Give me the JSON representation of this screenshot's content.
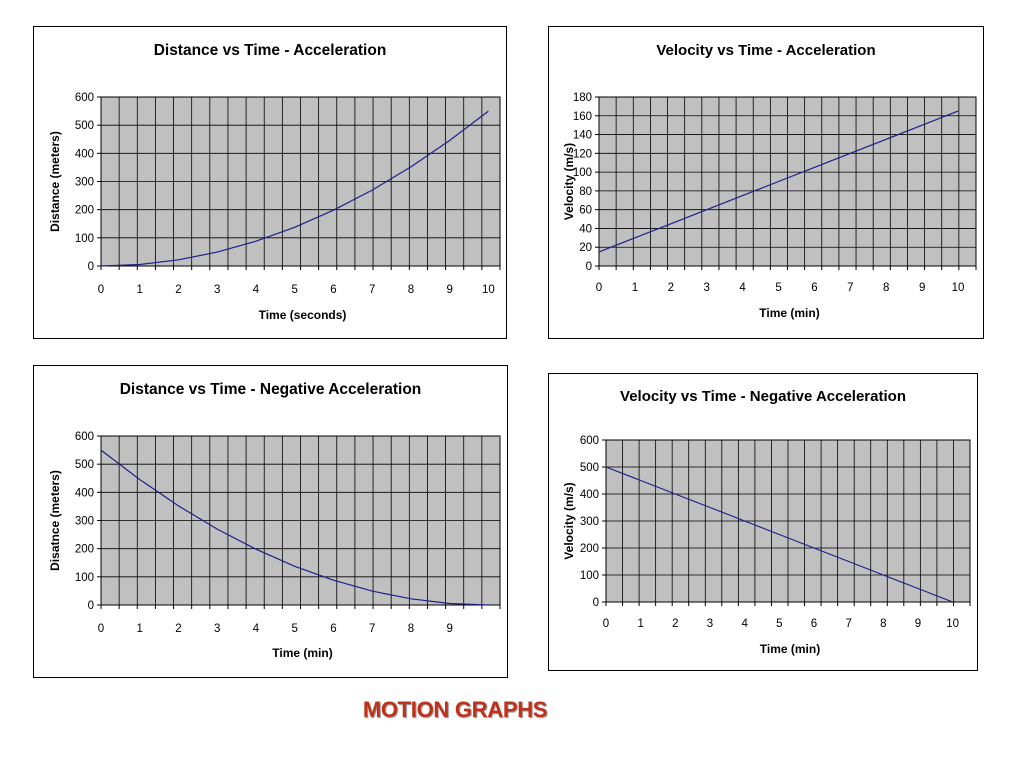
{
  "footer": {
    "title": "MOTION GRAPHS"
  },
  "colors": {
    "plot_bg": "#c0c0c0",
    "line": "#1f1f8c",
    "grid": "#000000",
    "footer_text": "#c0311a"
  },
  "chart_data": [
    {
      "type": "line",
      "title": "Distance vs Time - Acceleration",
      "xlabel": "Time (seconds)",
      "ylabel": "Distance (meters)",
      "x_ticks": [
        "0",
        "1",
        "2",
        "3",
        "4",
        "5",
        "6",
        "7",
        "8",
        "9",
        "10"
      ],
      "y_ticks": [
        "0",
        "100",
        "200",
        "300",
        "400",
        "500",
        "600"
      ],
      "ylim": [
        0,
        600
      ],
      "series": [
        {
          "x": [
            0,
            1,
            2,
            3,
            4,
            5,
            6,
            7,
            8,
            9,
            10
          ],
          "values": [
            0,
            5.5,
            22,
            49.5,
            88,
            137.5,
            198,
            269.5,
            352,
            445.5,
            550
          ]
        }
      ]
    },
    {
      "type": "line",
      "title": "Velocity vs Time - Acceleration",
      "xlabel": "Time (min)",
      "ylabel": "Velocity (m/s)",
      "x_ticks": [
        "0",
        "1",
        "2",
        "3",
        "4",
        "5",
        "6",
        "7",
        "8",
        "9",
        "10"
      ],
      "y_ticks": [
        "0",
        "20",
        "40",
        "60",
        "80",
        "100",
        "120",
        "140",
        "160",
        "180"
      ],
      "ylim": [
        0,
        180
      ],
      "series": [
        {
          "x": [
            0,
            1,
            2,
            3,
            4,
            5,
            6,
            7,
            8,
            9,
            10
          ],
          "values": [
            15,
            30,
            45,
            60,
            75,
            90,
            105,
            120,
            135,
            150,
            165
          ]
        }
      ]
    },
    {
      "type": "line",
      "title": "Distance vs Time - Negative Acceleration",
      "xlabel": "Time (min)",
      "ylabel": "Disatnce (meters)",
      "x_ticks": [
        "0",
        "1",
        "2",
        "3",
        "4",
        "5",
        "6",
        "7",
        "8",
        "9"
      ],
      "y_ticks": [
        "0",
        "100",
        "200",
        "300",
        "400",
        "500",
        "600"
      ],
      "ylim": [
        0,
        600
      ],
      "series": [
        {
          "x": [
            0,
            1,
            2,
            3,
            4,
            5,
            6,
            7,
            8,
            9,
            10
          ],
          "values": [
            550,
            445.5,
            352,
            269.5,
            198,
            137.5,
            88,
            49.5,
            22,
            5.5,
            0
          ]
        }
      ]
    },
    {
      "type": "line",
      "title": "Velocity vs Time - Negative Acceleration",
      "xlabel": "Time (min)",
      "ylabel": "Velocity (m/s)",
      "x_ticks": [
        "0",
        "1",
        "2",
        "3",
        "4",
        "5",
        "6",
        "7",
        "8",
        "9",
        "10"
      ],
      "y_ticks": [
        "0",
        "100",
        "200",
        "300",
        "400",
        "500",
        "600"
      ],
      "ylim": [
        0,
        600
      ],
      "series": [
        {
          "x": [
            0,
            1,
            2,
            3,
            4,
            5,
            6,
            7,
            8,
            9,
            10
          ],
          "values": [
            500,
            450,
            400,
            350,
            300,
            250,
            200,
            150,
            100,
            50,
            0
          ]
        }
      ]
    }
  ]
}
